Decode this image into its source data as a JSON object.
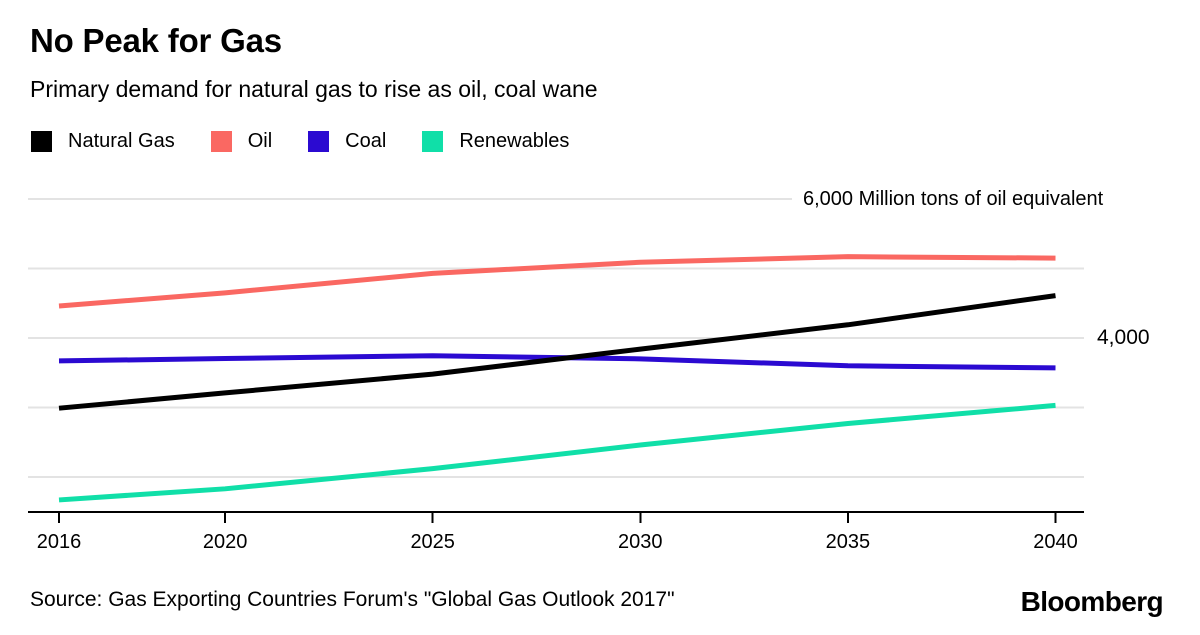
{
  "header": {
    "title": "No Peak for Gas",
    "subtitle": "Primary demand for natural gas to rise as oil, coal wane"
  },
  "legend": {
    "items": [
      {
        "label": "Natural Gas",
        "color": "#000000"
      },
      {
        "label": "Oil",
        "color": "#FA6862"
      },
      {
        "label": "Coal",
        "color": "#2B0AD1"
      },
      {
        "label": "Renewables",
        "color": "#10DFA8"
      }
    ]
  },
  "chart_data": {
    "type": "line",
    "title": "No Peak for Gas",
    "subtitle": "Primary demand for natural gas to rise as oil, coal wane",
    "x": [
      2016,
      2020,
      2025,
      2030,
      2035,
      2040
    ],
    "x_ticks": [
      2016,
      2020,
      2025,
      2030,
      2035,
      2040
    ],
    "series": [
      {
        "name": "Natural Gas",
        "color": "#000000",
        "values": [
          2990,
          3210,
          3480,
          3840,
          4190,
          4610
        ]
      },
      {
        "name": "Oil",
        "color": "#FA6862",
        "values": [
          4460,
          4650,
          4930,
          5090,
          5170,
          5150
        ]
      },
      {
        "name": "Coal",
        "color": "#2B0AD1",
        "values": [
          3670,
          3705,
          3745,
          3700,
          3600,
          3570
        ]
      },
      {
        "name": "Renewables",
        "color": "#10DFA8",
        "values": [
          1670,
          1830,
          2120,
          2460,
          2770,
          3030
        ]
      }
    ],
    "y_gridlines": [
      2000,
      3000,
      4000,
      5000,
      6000
    ],
    "unit_label": "6,000 Million tons of oil equivalent",
    "y_mid_label": "4,000",
    "ylim": [
      1500,
      6100
    ],
    "xlabel": "",
    "ylabel": "Million tons of oil equivalent",
    "grid": true,
    "legend_position": "top-left"
  },
  "footer": {
    "source": "Source: Gas Exporting Countries Forum's \"Global Gas Outlook 2017\"",
    "brand": "Bloomberg"
  },
  "colors": {
    "gridline": "#e3e3e3",
    "axis": "#000000",
    "text": "#000000",
    "background": "#ffffff"
  }
}
